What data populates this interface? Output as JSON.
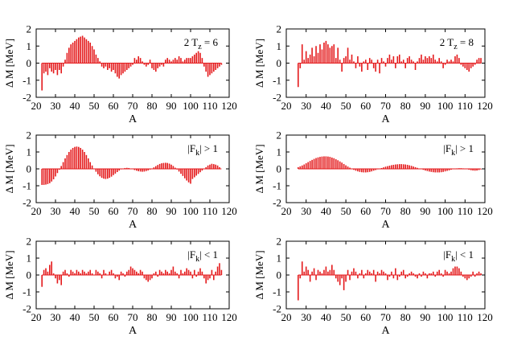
{
  "chart_data": [
    {
      "id": "p1",
      "type": "bar",
      "annotation": "2 T",
      "annotation_sub": "z",
      "annotation_tail": " = 6",
      "xlabel": "A",
      "ylabel": "Δ M [MeV]",
      "xlim": [
        20,
        120
      ],
      "ylim": [
        -2,
        2
      ],
      "xticks": [
        20,
        30,
        40,
        50,
        60,
        70,
        80,
        90,
        100,
        110,
        120
      ],
      "yticks": [
        -2,
        -1,
        0,
        1,
        2
      ],
      "color": "#e41a1c",
      "x": [
        23,
        24,
        25,
        26,
        27,
        28,
        29,
        30,
        31,
        32,
        33,
        34,
        35,
        36,
        37,
        38,
        39,
        40,
        41,
        42,
        43,
        44,
        45,
        46,
        47,
        48,
        49,
        50,
        51,
        52,
        53,
        54,
        55,
        56,
        57,
        58,
        59,
        60,
        61,
        62,
        63,
        64,
        65,
        66,
        67,
        68,
        69,
        70,
        71,
        72,
        73,
        74,
        75,
        76,
        77,
        78,
        79,
        80,
        81,
        82,
        83,
        84,
        85,
        86,
        87,
        88,
        89,
        90,
        91,
        92,
        93,
        94,
        95,
        96,
        97,
        98,
        99,
        100,
        101,
        102,
        103,
        104,
        105,
        106,
        107,
        108,
        109,
        110,
        111,
        112,
        113,
        114,
        115,
        116
      ],
      "values": [
        -1.6,
        -0.6,
        -0.5,
        -0.7,
        -0.3,
        -0.5,
        -0.6,
        -0.4,
        -0.7,
        -0.4,
        -0.6,
        -0.2,
        0.2,
        0.6,
        0.9,
        1.1,
        1.2,
        1.3,
        1.4,
        1.5,
        1.55,
        1.6,
        1.5,
        1.4,
        1.3,
        1.2,
        1.0,
        0.8,
        0.5,
        0.3,
        0.1,
        -0.2,
        -0.3,
        -0.2,
        -0.4,
        -0.3,
        -0.5,
        -0.4,
        -0.6,
        -0.8,
        -0.9,
        -0.7,
        -0.6,
        -0.5,
        -0.4,
        -0.3,
        -0.2,
        -0.1,
        0.3,
        0.2,
        0.4,
        0.3,
        0.1,
        -0.1,
        -0.2,
        -0.1,
        0.2,
        -0.3,
        -0.4,
        -0.5,
        -0.3,
        -0.2,
        -0.1,
        -0.2,
        0.2,
        0.3,
        0.2,
        0.1,
        0.2,
        0.3,
        0.2,
        0.4,
        0.3,
        0.1,
        0.2,
        0.3,
        0.3,
        0.3,
        0.4,
        0.5,
        0.6,
        0.7,
        0.6,
        0.3,
        -0.2,
        -0.5,
        -0.8,
        -0.7,
        -0.6,
        -0.5,
        -0.4,
        -0.3,
        -0.2,
        -0.1
      ]
    },
    {
      "id": "p2",
      "type": "bar",
      "annotation": "2 T",
      "annotation_sub": "z",
      "annotation_tail": " = 8",
      "xlabel": "A",
      "ylabel": "",
      "xlim": [
        20,
        120
      ],
      "ylim": [
        -2,
        2
      ],
      "xticks": [
        20,
        30,
        40,
        50,
        60,
        70,
        80,
        90,
        100,
        110,
        120
      ],
      "yticks": [
        -2,
        -1,
        0,
        1,
        2
      ],
      "color": "#e41a1c",
      "x": [
        26,
        27,
        28,
        29,
        30,
        31,
        32,
        33,
        34,
        35,
        36,
        37,
        38,
        39,
        40,
        41,
        42,
        43,
        44,
        45,
        46,
        47,
        48,
        49,
        50,
        51,
        52,
        53,
        54,
        55,
        56,
        57,
        58,
        59,
        60,
        61,
        62,
        63,
        64,
        65,
        66,
        67,
        68,
        69,
        70,
        71,
        72,
        73,
        74,
        75,
        76,
        77,
        78,
        79,
        80,
        81,
        82,
        83,
        84,
        85,
        86,
        87,
        88,
        89,
        90,
        91,
        92,
        93,
        94,
        95,
        96,
        97,
        98,
        99,
        100,
        101,
        102,
        103,
        104,
        105,
        106,
        107,
        108,
        109,
        110,
        111,
        112,
        113,
        114,
        115,
        116,
        117,
        118
      ],
      "values": [
        -1.4,
        -0.3,
        1.1,
        0.2,
        0.7,
        0.3,
        0.5,
        0.9,
        0.4,
        1.0,
        0.6,
        1.1,
        0.8,
        1.2,
        1.3,
        1.1,
        0.9,
        1.0,
        1.1,
        0.3,
        0.9,
        0.2,
        -0.5,
        0.3,
        0.4,
        0.9,
        0.2,
        0.5,
        0.1,
        -0.3,
        0.4,
        -0.2,
        -0.5,
        0.1,
        0.2,
        -0.4,
        0.3,
        0.2,
        -0.3,
        -0.5,
        0.2,
        -0.6,
        0.3,
        0.1,
        -0.2,
        0.3,
        0.5,
        0.2,
        0.4,
        -0.3,
        0.4,
        0.5,
        0.1,
        0.2,
        -0.3,
        0.3,
        0.4,
        0.2,
        0.1,
        -0.4,
        0.1,
        0.3,
        0.5,
        0.2,
        0.4,
        0.3,
        0.4,
        0.3,
        0.5,
        0.2,
        0.1,
        0.3,
        0.1,
        -0.3,
        -0.1,
        0.2,
        0.1,
        0.2,
        0.1,
        0.4,
        0.5,
        0.3,
        -0.1,
        -0.2,
        -0.3,
        -0.4,
        -0.5,
        -0.3,
        -0.2,
        -0.1,
        0.2,
        0.3,
        0.3
      ]
    },
    {
      "id": "p3",
      "type": "bar",
      "annotation": "|F",
      "annotation_sub": "k",
      "annotation_tail": "| > 1",
      "xlabel": "A",
      "ylabel": "Δ M [MeV]",
      "xlim": [
        20,
        120
      ],
      "ylim": [
        -2,
        2
      ],
      "xticks": [
        20,
        30,
        40,
        50,
        60,
        70,
        80,
        90,
        100,
        110,
        120
      ],
      "yticks": [
        -2,
        -1,
        0,
        1,
        2
      ],
      "color": "#e41a1c",
      "x": [
        23,
        24,
        25,
        26,
        27,
        28,
        29,
        30,
        31,
        32,
        33,
        34,
        35,
        36,
        37,
        38,
        39,
        40,
        41,
        42,
        43,
        44,
        45,
        46,
        47,
        48,
        49,
        50,
        51,
        52,
        53,
        54,
        55,
        56,
        57,
        58,
        59,
        60,
        61,
        62,
        63,
        64,
        65,
        66,
        67,
        68,
        69,
        70,
        71,
        72,
        73,
        74,
        75,
        76,
        77,
        78,
        79,
        80,
        81,
        82,
        83,
        84,
        85,
        86,
        87,
        88,
        89,
        90,
        91,
        92,
        93,
        94,
        95,
        96,
        97,
        98,
        99,
        100,
        101,
        102,
        103,
        104,
        105,
        106,
        107,
        108,
        109,
        110,
        111,
        112,
        113,
        114,
        115,
        116
      ],
      "values": [
        -0.95,
        -0.95,
        -0.93,
        -0.9,
        -0.85,
        -0.75,
        -0.62,
        -0.45,
        -0.25,
        -0.05,
        0.17,
        0.4,
        0.62,
        0.82,
        1.0,
        1.14,
        1.24,
        1.3,
        1.32,
        1.3,
        1.24,
        1.14,
        1.0,
        0.82,
        0.62,
        0.4,
        0.2,
        0.0,
        -0.17,
        -0.32,
        -0.44,
        -0.53,
        -0.58,
        -0.6,
        -0.58,
        -0.53,
        -0.46,
        -0.37,
        -0.28,
        -0.19,
        -0.1,
        -0.03,
        0.02,
        0.05,
        0.06,
        0.05,
        0.02,
        -0.02,
        -0.07,
        -0.11,
        -0.14,
        -0.16,
        -0.17,
        -0.16,
        -0.13,
        -0.09,
        -0.04,
        0.02,
        0.09,
        0.16,
        0.23,
        0.29,
        0.33,
        0.35,
        0.36,
        0.35,
        0.31,
        0.25,
        0.17,
        0.07,
        -0.04,
        -0.16,
        -0.29,
        -0.42,
        -0.56,
        -0.69,
        -0.8,
        -0.88,
        -0.6,
        -0.5,
        -0.4,
        -0.3,
        -0.2,
        -0.1,
        0.0,
        0.1,
        0.2,
        0.25,
        0.3,
        0.28,
        0.25,
        0.2,
        0.1,
        0.0
      ]
    },
    {
      "id": "p4",
      "type": "bar",
      "annotation": "|F",
      "annotation_sub": "k",
      "annotation_tail": "| > 1",
      "xlabel": "A",
      "ylabel": "",
      "xlim": [
        20,
        120
      ],
      "ylim": [
        -2,
        2
      ],
      "xticks": [
        20,
        30,
        40,
        50,
        60,
        70,
        80,
        90,
        100,
        110,
        120
      ],
      "yticks": [
        -2,
        -1,
        0,
        1,
        2
      ],
      "color": "#e41a1c",
      "x": [
        26,
        27,
        28,
        29,
        30,
        31,
        32,
        33,
        34,
        35,
        36,
        37,
        38,
        39,
        40,
        41,
        42,
        43,
        44,
        45,
        46,
        47,
        48,
        49,
        50,
        51,
        52,
        53,
        54,
        55,
        56,
        57,
        58,
        59,
        60,
        61,
        62,
        63,
        64,
        65,
        66,
        67,
        68,
        69,
        70,
        71,
        72,
        73,
        74,
        75,
        76,
        77,
        78,
        79,
        80,
        81,
        82,
        83,
        84,
        85,
        86,
        87,
        88,
        89,
        90,
        91,
        92,
        93,
        94,
        95,
        96,
        97,
        98,
        99,
        100,
        101,
        102,
        103,
        104,
        105,
        106,
        107,
        108,
        109,
        110,
        111,
        112,
        113,
        114,
        115,
        116,
        117,
        118
      ],
      "values": [
        0.1,
        0.15,
        0.2,
        0.26,
        0.33,
        0.4,
        0.47,
        0.53,
        0.59,
        0.64,
        0.68,
        0.71,
        0.73,
        0.74,
        0.74,
        0.73,
        0.71,
        0.67,
        0.63,
        0.57,
        0.51,
        0.44,
        0.37,
        0.29,
        0.21,
        0.14,
        0.07,
        0.0,
        -0.06,
        -0.11,
        -0.15,
        -0.18,
        -0.2,
        -0.21,
        -0.21,
        -0.2,
        -0.18,
        -0.15,
        -0.11,
        -0.07,
        -0.03,
        0.01,
        0.05,
        0.09,
        0.13,
        0.16,
        0.19,
        0.22,
        0.24,
        0.26,
        0.27,
        0.28,
        0.28,
        0.27,
        0.26,
        0.24,
        0.21,
        0.18,
        0.14,
        0.1,
        0.06,
        0.02,
        -0.02,
        -0.06,
        -0.1,
        -0.13,
        -0.16,
        -0.18,
        -0.2,
        -0.21,
        -0.21,
        -0.21,
        -0.2,
        -0.18,
        -0.15,
        -0.12,
        -0.09,
        -0.05,
        -0.02,
        0.01,
        0.03,
        0.04,
        0.04,
        0.03,
        0.01,
        -0.02,
        -0.05,
        -0.08,
        -0.1,
        -0.11,
        -0.1,
        -0.07,
        -0.03
      ]
    },
    {
      "id": "p5",
      "type": "bar",
      "annotation": "|F",
      "annotation_sub": "k",
      "annotation_tail": "| < 1",
      "xlabel": "A",
      "ylabel": "Δ M [MeV]",
      "xlim": [
        20,
        120
      ],
      "ylim": [
        -2,
        2
      ],
      "xticks": [
        20,
        30,
        40,
        50,
        60,
        70,
        80,
        90,
        100,
        110,
        120
      ],
      "yticks": [
        -2,
        -1,
        0,
        1,
        2
      ],
      "color": "#e41a1c",
      "x": [
        23,
        24,
        25,
        26,
        27,
        28,
        29,
        30,
        31,
        32,
        33,
        34,
        35,
        36,
        37,
        38,
        39,
        40,
        41,
        42,
        43,
        44,
        45,
        46,
        47,
        48,
        49,
        50,
        51,
        52,
        53,
        54,
        55,
        56,
        57,
        58,
        59,
        60,
        61,
        62,
        63,
        64,
        65,
        66,
        67,
        68,
        69,
        70,
        71,
        72,
        73,
        74,
        75,
        76,
        77,
        78,
        79,
        80,
        81,
        82,
        83,
        84,
        85,
        86,
        87,
        88,
        89,
        90,
        91,
        92,
        93,
        94,
        95,
        96,
        97,
        98,
        99,
        100,
        101,
        102,
        103,
        104,
        105,
        106,
        107,
        108,
        109,
        110,
        111,
        112,
        113,
        114,
        115,
        116
      ],
      "values": [
        -0.7,
        0.3,
        0.4,
        0.2,
        0.6,
        0.8,
        0.1,
        -0.2,
        -0.5,
        -0.3,
        -0.6,
        0.2,
        0.3,
        0.1,
        -0.1,
        0.3,
        0.2,
        0.1,
        0.3,
        0.2,
        0.1,
        0.3,
        0.2,
        0.1,
        0.2,
        0.3,
        0.1,
        0.0,
        0.3,
        0.2,
        0.1,
        -0.2,
        0.3,
        0.1,
        0.0,
        0.2,
        0.3,
        0.1,
        -0.2,
        -0.1,
        -0.3,
        0.2,
        0.1,
        -0.1,
        0.2,
        0.3,
        0.5,
        0.4,
        0.3,
        0.2,
        0.1,
        0.3,
        0.2,
        -0.2,
        -0.3,
        -0.4,
        -0.3,
        -0.2,
        0.1,
        0.2,
        -0.1,
        0.3,
        0.2,
        0.1,
        0.3,
        0.2,
        0.1,
        0.3,
        0.5,
        0.2,
        0.1,
        -0.2,
        0.3,
        0.1,
        0.2,
        0.4,
        0.3,
        0.2,
        -0.2,
        0.3,
        -0.1,
        0.2,
        0.4,
        0.2,
        -0.2,
        -0.5,
        -0.3,
        -0.2,
        0.3,
        -0.3,
        0.2,
        0.5,
        0.7,
        0.3
      ]
    },
    {
      "id": "p6",
      "type": "bar",
      "annotation": "|F",
      "annotation_sub": "k",
      "annotation_tail": "| < 1",
      "xlabel": "A",
      "ylabel": "",
      "xlim": [
        20,
        120
      ],
      "ylim": [
        -2,
        2
      ],
      "xticks": [
        20,
        30,
        40,
        50,
        60,
        70,
        80,
        90,
        100,
        110,
        120
      ],
      "yticks": [
        -2,
        -1,
        0,
        1,
        2
      ],
      "color": "#e41a1c",
      "x": [
        26,
        27,
        28,
        29,
        30,
        31,
        32,
        33,
        34,
        35,
        36,
        37,
        38,
        39,
        40,
        41,
        42,
        43,
        44,
        45,
        46,
        47,
        48,
        49,
        50,
        51,
        52,
        53,
        54,
        55,
        56,
        57,
        58,
        59,
        60,
        61,
        62,
        63,
        64,
        65,
        66,
        67,
        68,
        69,
        70,
        71,
        72,
        73,
        74,
        75,
        76,
        77,
        78,
        79,
        80,
        81,
        82,
        83,
        84,
        85,
        86,
        87,
        88,
        89,
        90,
        91,
        92,
        93,
        94,
        95,
        96,
        97,
        98,
        99,
        100,
        101,
        102,
        103,
        104,
        105,
        106,
        107,
        108,
        109,
        110,
        111,
        112,
        113,
        114,
        115,
        116,
        117,
        118
      ],
      "values": [
        -1.5,
        -0.2,
        0.8,
        0.2,
        0.5,
        0.3,
        -0.4,
        0.2,
        0.4,
        -0.3,
        0.3,
        0.2,
        0.1,
        0.3,
        0.5,
        0.2,
        0.3,
        0.6,
        0.3,
        -0.2,
        -0.4,
        -0.6,
        -0.2,
        -0.9,
        -0.4,
        0.3,
        -0.3,
        0.2,
        0.4,
        0.2,
        -0.2,
        0.1,
        0.3,
        -0.2,
        0.1,
        0.3,
        0.2,
        0.1,
        0.3,
        -0.4,
        0.2,
        0.1,
        0.3,
        0.2,
        0.1,
        -0.3,
        -0.1,
        0.2,
        -0.2,
        0.4,
        -0.3,
        -0.1,
        0.2,
        0.3,
        -0.2,
        -0.1,
        0.1,
        0.2,
        0.1,
        -0.1,
        -0.2,
        0.1,
        -0.1,
        0.2,
        0.1,
        -0.2,
        0.1,
        0.1,
        0.2,
        -0.1,
        0.2,
        0.3,
        0.1,
        -0.1,
        0.3,
        0.2,
        0.1,
        0.2,
        0.4,
        0.5,
        0.5,
        0.4,
        0.2,
        -0.1,
        -0.2,
        -0.3,
        -0.2,
        -0.1,
        0.2,
        -0.1,
        0.1,
        0.2,
        0.1
      ]
    }
  ]
}
